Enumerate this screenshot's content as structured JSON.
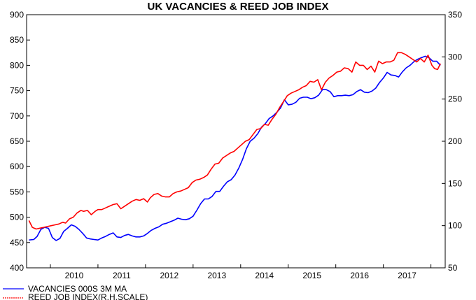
{
  "chart_data": {
    "type": "line",
    "title": "UK VACANCIES & REED JOB INDEX",
    "x_axis": {
      "tick_labels": [
        "2010",
        "2011",
        "2012",
        "2013",
        "2014",
        "2015",
        "2016",
        "2017"
      ],
      "range": [
        2009.5,
        2018.3
      ]
    },
    "y_left": {
      "range": [
        400,
        900
      ],
      "tick_labels": [
        "400",
        "450",
        "500",
        "550",
        "600",
        "650",
        "700",
        "750",
        "800",
        "850",
        "900"
      ]
    },
    "y_right": {
      "range": [
        50,
        350
      ],
      "tick_labels": [
        "50",
        "100",
        "150",
        "200",
        "250",
        "300",
        "350"
      ]
    },
    "grid": false,
    "legend_position": "bottom-left",
    "series": [
      {
        "name": "VACANCIES 000S 3M MA",
        "color": "#0000ff",
        "axis": "left",
        "points": [
          [
            2009.55,
            455
          ],
          [
            2009.65,
            456
          ],
          [
            2009.72,
            462
          ],
          [
            2009.8,
            476
          ],
          [
            2009.88,
            480
          ],
          [
            2009.96,
            478
          ],
          [
            2010.04,
            460
          ],
          [
            2010.12,
            454
          ],
          [
            2010.2,
            458
          ],
          [
            2010.28,
            472
          ],
          [
            2010.36,
            478
          ],
          [
            2010.44,
            485
          ],
          [
            2010.52,
            482
          ],
          [
            2010.6,
            476
          ],
          [
            2010.68,
            468
          ],
          [
            2010.76,
            459
          ],
          [
            2010.84,
            457
          ],
          [
            2010.92,
            456
          ],
          [
            2011.0,
            455
          ],
          [
            2011.08,
            459
          ],
          [
            2011.16,
            462
          ],
          [
            2011.24,
            466
          ],
          [
            2011.32,
            469
          ],
          [
            2011.4,
            461
          ],
          [
            2011.48,
            460
          ],
          [
            2011.56,
            464
          ],
          [
            2011.64,
            466
          ],
          [
            2011.72,
            463
          ],
          [
            2011.8,
            461
          ],
          [
            2011.88,
            461
          ],
          [
            2011.96,
            463
          ],
          [
            2012.04,
            468
          ],
          [
            2012.12,
            474
          ],
          [
            2012.2,
            478
          ],
          [
            2012.28,
            481
          ],
          [
            2012.36,
            486
          ],
          [
            2012.44,
            488
          ],
          [
            2012.52,
            491
          ],
          [
            2012.6,
            494
          ],
          [
            2012.68,
            498
          ],
          [
            2012.76,
            496
          ],
          [
            2012.84,
            495
          ],
          [
            2012.92,
            497
          ],
          [
            2013.0,
            502
          ],
          [
            2013.08,
            514
          ],
          [
            2013.16,
            527
          ],
          [
            2013.24,
            536
          ],
          [
            2013.32,
            536
          ],
          [
            2013.4,
            541
          ],
          [
            2013.48,
            551
          ],
          [
            2013.56,
            551
          ],
          [
            2013.64,
            561
          ],
          [
            2013.72,
            570
          ],
          [
            2013.8,
            574
          ],
          [
            2013.88,
            583
          ],
          [
            2013.96,
            597
          ],
          [
            2014.04,
            614
          ],
          [
            2014.12,
            635
          ],
          [
            2014.2,
            650
          ],
          [
            2014.28,
            656
          ],
          [
            2014.36,
            665
          ],
          [
            2014.44,
            678
          ],
          [
            2014.52,
            685
          ],
          [
            2014.6,
            695
          ],
          [
            2014.68,
            700
          ],
          [
            2014.76,
            707
          ],
          [
            2014.84,
            716
          ],
          [
            2014.92,
            732
          ],
          [
            2015.0,
            722
          ],
          [
            2015.08,
            723
          ],
          [
            2015.16,
            727
          ],
          [
            2015.24,
            735
          ],
          [
            2015.32,
            737
          ],
          [
            2015.4,
            737
          ],
          [
            2015.48,
            734
          ],
          [
            2015.56,
            736
          ],
          [
            2015.64,
            741
          ],
          [
            2015.72,
            752
          ],
          [
            2015.8,
            752
          ],
          [
            2015.88,
            748
          ],
          [
            2015.96,
            738
          ],
          [
            2016.04,
            740
          ],
          [
            2016.12,
            740
          ],
          [
            2016.2,
            741
          ],
          [
            2016.28,
            740
          ],
          [
            2016.36,
            742
          ],
          [
            2016.44,
            748
          ],
          [
            2016.52,
            752
          ],
          [
            2016.6,
            747
          ],
          [
            2016.68,
            746
          ],
          [
            2016.76,
            749
          ],
          [
            2016.84,
            755
          ],
          [
            2016.92,
            766
          ],
          [
            2017.0,
            775
          ],
          [
            2017.08,
            786
          ],
          [
            2017.16,
            781
          ],
          [
            2017.24,
            780
          ],
          [
            2017.32,
            777
          ],
          [
            2017.4,
            787
          ],
          [
            2017.48,
            795
          ],
          [
            2017.56,
            800
          ],
          [
            2017.64,
            807
          ],
          [
            2017.72,
            812
          ],
          [
            2017.8,
            815
          ],
          [
            2017.88,
            818
          ],
          [
            2017.96,
            815
          ],
          [
            2018.04,
            808
          ],
          [
            2018.12,
            808
          ],
          [
            2018.2,
            800
          ]
        ]
      },
      {
        "name": "REED JOB INDEX(R.H.SCALE)",
        "color": "#ff0000",
        "axis": "right",
        "points": [
          [
            2009.55,
            106
          ],
          [
            2009.62,
            98
          ],
          [
            2009.7,
            96
          ],
          [
            2009.78,
            97
          ],
          [
            2009.86,
            98
          ],
          [
            2009.94,
            99
          ],
          [
            2010.02,
            100
          ],
          [
            2010.1,
            101
          ],
          [
            2010.18,
            102
          ],
          [
            2010.26,
            104
          ],
          [
            2010.32,
            103
          ],
          [
            2010.4,
            108
          ],
          [
            2010.48,
            110
          ],
          [
            2010.56,
            115
          ],
          [
            2010.64,
            118
          ],
          [
            2010.7,
            117
          ],
          [
            2010.78,
            118
          ],
          [
            2010.86,
            113
          ],
          [
            2010.94,
            117
          ],
          [
            2011.0,
            119
          ],
          [
            2011.08,
            119
          ],
          [
            2011.16,
            121
          ],
          [
            2011.24,
            123
          ],
          [
            2011.32,
            125
          ],
          [
            2011.4,
            126
          ],
          [
            2011.48,
            120
          ],
          [
            2011.56,
            123
          ],
          [
            2011.64,
            126
          ],
          [
            2011.72,
            129
          ],
          [
            2011.8,
            131
          ],
          [
            2011.88,
            130
          ],
          [
            2011.96,
            132
          ],
          [
            2012.04,
            128
          ],
          [
            2012.1,
            133
          ],
          [
            2012.18,
            137
          ],
          [
            2012.26,
            138
          ],
          [
            2012.34,
            135
          ],
          [
            2012.42,
            134
          ],
          [
            2012.5,
            134
          ],
          [
            2012.58,
            138
          ],
          [
            2012.66,
            140
          ],
          [
            2012.74,
            141
          ],
          [
            2012.82,
            143
          ],
          [
            2012.9,
            145
          ],
          [
            2012.98,
            151
          ],
          [
            2013.06,
            154
          ],
          [
            2013.14,
            155
          ],
          [
            2013.22,
            157
          ],
          [
            2013.3,
            160
          ],
          [
            2013.38,
            167
          ],
          [
            2013.46,
            173
          ],
          [
            2013.54,
            174
          ],
          [
            2013.62,
            180
          ],
          [
            2013.7,
            183
          ],
          [
            2013.78,
            186
          ],
          [
            2013.86,
            188
          ],
          [
            2013.94,
            192
          ],
          [
            2014.02,
            196
          ],
          [
            2014.1,
            200
          ],
          [
            2014.18,
            202
          ],
          [
            2014.26,
            208
          ],
          [
            2014.34,
            214
          ],
          [
            2014.42,
            215
          ],
          [
            2014.5,
            220
          ],
          [
            2014.58,
            219
          ],
          [
            2014.66,
            226
          ],
          [
            2014.74,
            232
          ],
          [
            2014.82,
            240
          ],
          [
            2014.9,
            247
          ],
          [
            2014.98,
            254
          ],
          [
            2015.06,
            257
          ],
          [
            2015.14,
            259
          ],
          [
            2015.22,
            261
          ],
          [
            2015.3,
            264
          ],
          [
            2015.38,
            266
          ],
          [
            2015.46,
            271
          ],
          [
            2015.54,
            270
          ],
          [
            2015.62,
            273
          ],
          [
            2015.7,
            261
          ],
          [
            2015.78,
            270
          ],
          [
            2015.86,
            275
          ],
          [
            2015.94,
            278
          ],
          [
            2016.02,
            282
          ],
          [
            2016.1,
            283
          ],
          [
            2016.18,
            287
          ],
          [
            2016.26,
            286
          ],
          [
            2016.34,
            282
          ],
          [
            2016.42,
            294
          ],
          [
            2016.5,
            290
          ],
          [
            2016.58,
            290
          ],
          [
            2016.66,
            285
          ],
          [
            2016.74,
            289
          ],
          [
            2016.82,
            282
          ],
          [
            2016.9,
            295
          ],
          [
            2016.98,
            292
          ],
          [
            2017.06,
            294
          ],
          [
            2017.14,
            294
          ],
          [
            2017.22,
            296
          ],
          [
            2017.3,
            305
          ],
          [
            2017.38,
            305
          ],
          [
            2017.46,
            303
          ],
          [
            2017.54,
            300
          ],
          [
            2017.62,
            297
          ],
          [
            2017.7,
            294
          ],
          [
            2017.78,
            298
          ],
          [
            2017.86,
            294
          ],
          [
            2017.94,
            302
          ],
          [
            2018.02,
            290
          ],
          [
            2018.08,
            286
          ],
          [
            2018.14,
            285
          ],
          [
            2018.2,
            292
          ]
        ]
      }
    ]
  }
}
